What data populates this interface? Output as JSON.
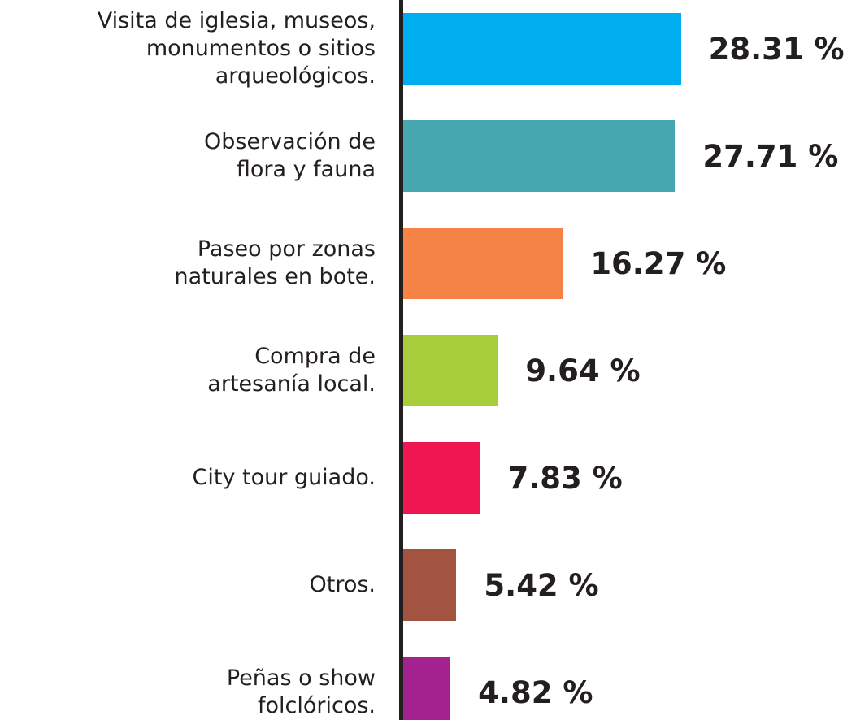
{
  "chart_data": {
    "type": "barh",
    "categories": [
      "Visita de iglesia, museos,\nmonumentos o sitios\narqueológicos.",
      "Observación de\nflora y fauna",
      "Paseo por zonas\nnaturales en bote.",
      "Compra de\nartesanía local.",
      "City tour guiado.",
      "Otros.",
      "Peñas o show\nfolclóricos."
    ],
    "values": [
      28.31,
      27.71,
      16.27,
      9.64,
      7.83,
      5.42,
      4.82
    ],
    "value_labels": [
      "28.31 %",
      "27.71 %",
      "16.27 %",
      "9.64 %",
      "7.83 %",
      "5.42 %",
      "4.82 %"
    ],
    "colors": [
      "#00aeef",
      "#47a7b0",
      "#f58345",
      "#a8cd3a",
      "#ee1751",
      "#a35440",
      "#a3228f"
    ],
    "xlim": [
      0,
      30
    ]
  }
}
